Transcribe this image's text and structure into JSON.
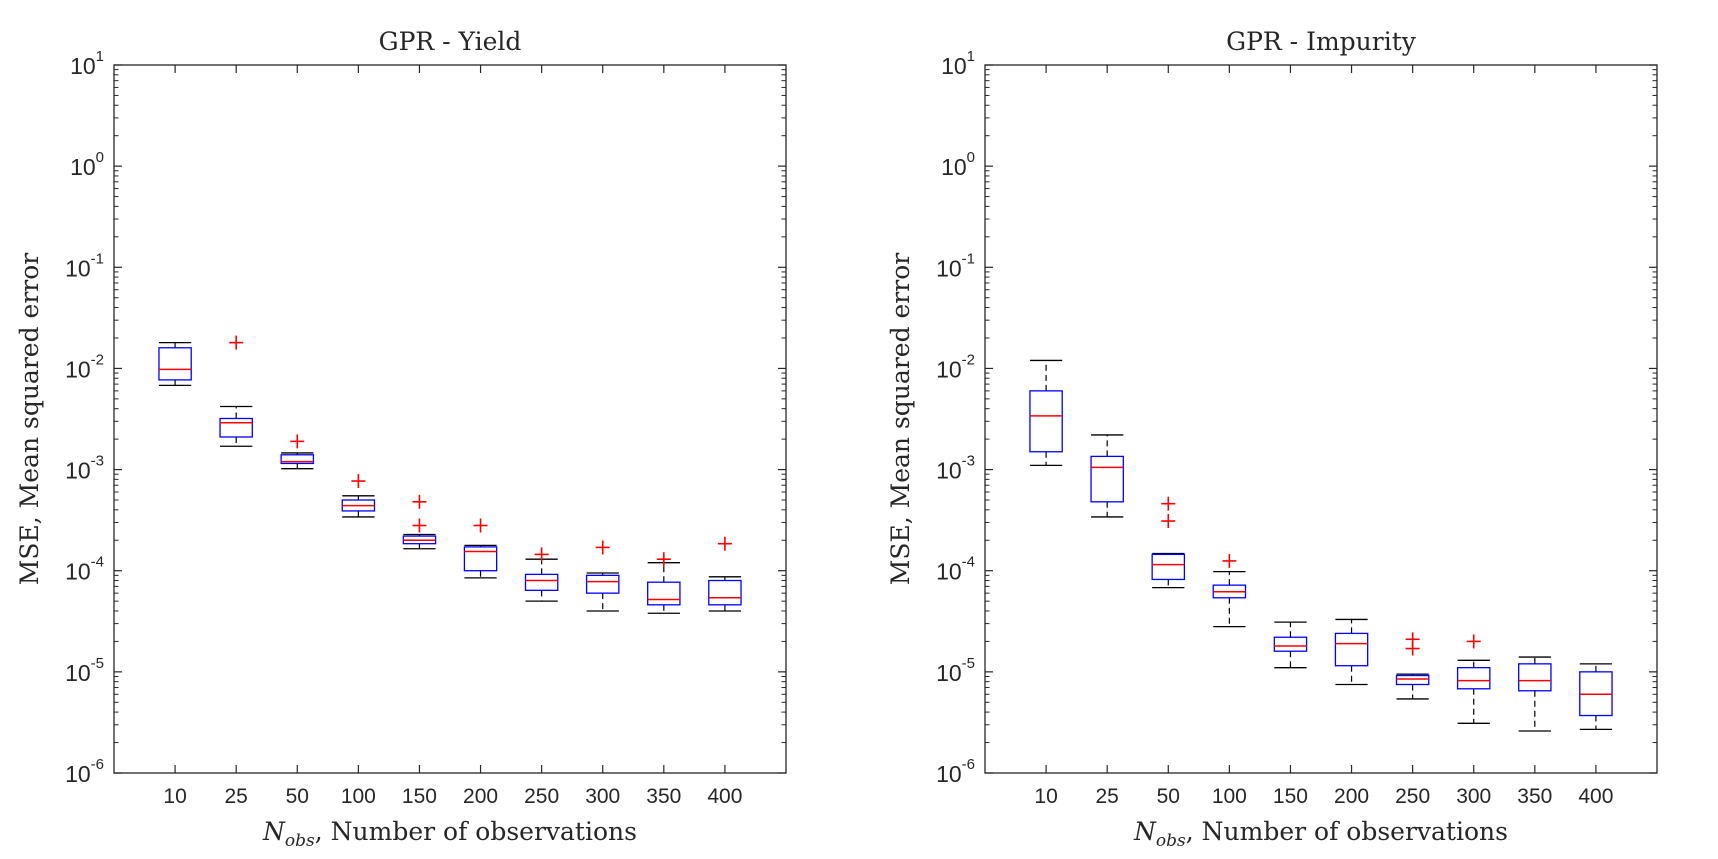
{
  "chart_data": [
    {
      "type": "box",
      "title": "GPR - Yield",
      "xlabel": {
        "symbol": "N",
        "subscript": "obs",
        "text": ", Number of observations"
      },
      "ylabel": "MSE, Mean squared error",
      "yscale": "log",
      "ylim": [
        1e-06,
        10
      ],
      "ytick_labels": [
        {
          "base": "10",
          "exp": "-6"
        },
        {
          "base": "10",
          "exp": "-5"
        },
        {
          "base": "10",
          "exp": "-4"
        },
        {
          "base": "10",
          "exp": "-3"
        },
        {
          "base": "10",
          "exp": "-2"
        },
        {
          "base": "10",
          "exp": "-1"
        },
        {
          "base": "10",
          "exp": "0"
        },
        {
          "base": "10",
          "exp": "1"
        }
      ],
      "categories": [
        "10",
        "25",
        "50",
        "100",
        "150",
        "200",
        "250",
        "300",
        "350",
        "400"
      ],
      "boxes": [
        {
          "whisker_low": 0.0068,
          "q1": 0.0077,
          "median": 0.0098,
          "q3": 0.016,
          "whisker_high": 0.018,
          "outliers": []
        },
        {
          "whisker_low": 0.0017,
          "q1": 0.0021,
          "median": 0.0029,
          "q3": 0.0032,
          "whisker_high": 0.0042,
          "outliers": [
            0.018
          ]
        },
        {
          "whisker_low": 0.00102,
          "q1": 0.00115,
          "median": 0.0012,
          "q3": 0.0014,
          "whisker_high": 0.00146,
          "outliers": [
            0.0019
          ]
        },
        {
          "whisker_low": 0.00034,
          "q1": 0.00039,
          "median": 0.00044,
          "q3": 0.0005,
          "whisker_high": 0.00055,
          "outliers": [
            0.00077
          ]
        },
        {
          "whisker_low": 0.000165,
          "q1": 0.000185,
          "median": 0.0002,
          "q3": 0.00022,
          "whisker_high": 0.000228,
          "outliers": [
            0.00048,
            0.00028
          ]
        },
        {
          "whisker_low": 8.5e-05,
          "q1": 0.0001,
          "median": 0.000155,
          "q3": 0.000172,
          "whisker_high": 0.000178,
          "outliers": [
            0.00028
          ]
        },
        {
          "whisker_low": 5e-05,
          "q1": 6.4e-05,
          "median": 8e-05,
          "q3": 9.2e-05,
          "whisker_high": 0.00013,
          "outliers": [
            0.000145
          ]
        },
        {
          "whisker_low": 4e-05,
          "q1": 6e-05,
          "median": 7.8e-05,
          "q3": 9e-05,
          "whisker_high": 9.5e-05,
          "outliers": [
            0.00017
          ]
        },
        {
          "whisker_low": 3.8e-05,
          "q1": 4.6e-05,
          "median": 5.2e-05,
          "q3": 7.7e-05,
          "whisker_high": 0.00012,
          "outliers": [
            0.00013
          ]
        },
        {
          "whisker_low": 4e-05,
          "q1": 4.6e-05,
          "median": 5.4e-05,
          "q3": 8e-05,
          "whisker_high": 8.7e-05,
          "outliers": [
            0.000185
          ]
        }
      ]
    },
    {
      "type": "box",
      "title": "GPR - Impurity",
      "xlabel": {
        "symbol": "N",
        "subscript": "obs",
        "text": ", Number of observations"
      },
      "ylabel": "MSE, Mean squared error",
      "yscale": "log",
      "ylim": [
        1e-06,
        10
      ],
      "ytick_labels": [
        {
          "base": "10",
          "exp": "-6"
        },
        {
          "base": "10",
          "exp": "-5"
        },
        {
          "base": "10",
          "exp": "-4"
        },
        {
          "base": "10",
          "exp": "-3"
        },
        {
          "base": "10",
          "exp": "-2"
        },
        {
          "base": "10",
          "exp": "-1"
        },
        {
          "base": "10",
          "exp": "0"
        },
        {
          "base": "10",
          "exp": "1"
        }
      ],
      "categories": [
        "10",
        "25",
        "50",
        "100",
        "150",
        "200",
        "250",
        "300",
        "350",
        "400"
      ],
      "boxes": [
        {
          "whisker_low": 0.0011,
          "q1": 0.0015,
          "median": 0.0034,
          "q3": 0.006,
          "whisker_high": 0.012,
          "outliers": []
        },
        {
          "whisker_low": 0.00034,
          "q1": 0.00048,
          "median": 0.00105,
          "q3": 0.00135,
          "whisker_high": 0.0022,
          "outliers": []
        },
        {
          "whisker_low": 6.8e-05,
          "q1": 8.2e-05,
          "median": 0.000115,
          "q3": 0.000145,
          "whisker_high": 0.000148,
          "outliers": [
            0.00046,
            0.00031
          ]
        },
        {
          "whisker_low": 2.8e-05,
          "q1": 5.4e-05,
          "median": 6.2e-05,
          "q3": 7.2e-05,
          "whisker_high": 9.8e-05,
          "outliers": [
            0.000125
          ]
        },
        {
          "whisker_low": 1.1e-05,
          "q1": 1.6e-05,
          "median": 1.8e-05,
          "q3": 2.2e-05,
          "whisker_high": 3.1e-05,
          "outliers": []
        },
        {
          "whisker_low": 7.5e-06,
          "q1": 1.15e-05,
          "median": 1.9e-05,
          "q3": 2.4e-05,
          "whisker_high": 3.3e-05,
          "outliers": []
        },
        {
          "whisker_low": 5.4e-06,
          "q1": 7.5e-06,
          "median": 8.5e-06,
          "q3": 9.2e-06,
          "whisker_high": 9.5e-06,
          "outliers": [
            2.1e-05,
            1.7e-05
          ]
        },
        {
          "whisker_low": 3.1e-06,
          "q1": 6.8e-06,
          "median": 8.2e-06,
          "q3": 1.1e-05,
          "whisker_high": 1.3e-05,
          "outliers": [
            2e-05
          ]
        },
        {
          "whisker_low": 2.6e-06,
          "q1": 6.5e-06,
          "median": 8.2e-06,
          "q3": 1.2e-05,
          "whisker_high": 1.4e-05,
          "outliers": []
        },
        {
          "whisker_low": 2.7e-06,
          "q1": 3.7e-06,
          "median": 6e-06,
          "q3": 1e-05,
          "whisker_high": 1.2e-05,
          "outliers": []
        }
      ]
    }
  ],
  "colors": {
    "box": "#0000ff",
    "median": "#ff0000",
    "whisker": "#000000",
    "outlier": "#ff0000",
    "axis": "#262626"
  }
}
